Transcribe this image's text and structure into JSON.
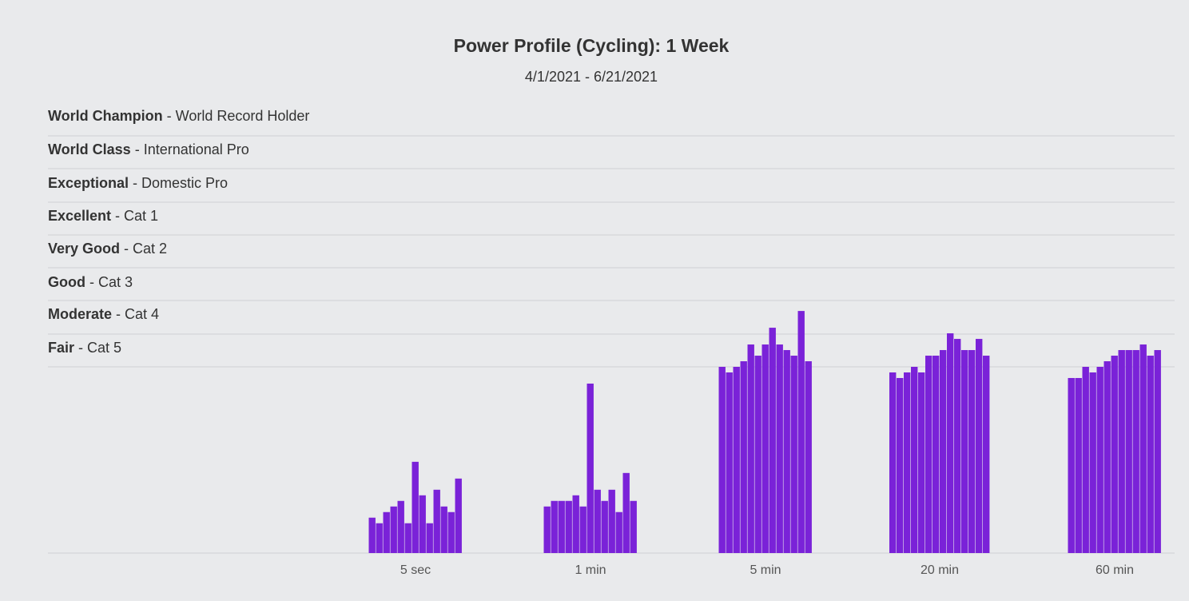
{
  "chart_data": {
    "type": "bar",
    "title": "Power Profile (Cycling): 1 Week",
    "subtitle": "4/1/2021 - 6/21/2021",
    "bar_color": "#7a22d8",
    "grid_color": "#cfd0d3",
    "levels": [
      {
        "name": "World Champion",
        "desc": "World Record Holder"
      },
      {
        "name": "World Class",
        "desc": "International Pro"
      },
      {
        "name": "Exceptional",
        "desc": "Domestic Pro"
      },
      {
        "name": "Excellent",
        "desc": "Cat 1"
      },
      {
        "name": "Very Good",
        "desc": "Cat 2"
      },
      {
        "name": "Good",
        "desc": "Cat 3"
      },
      {
        "name": "Moderate",
        "desc": "Cat 4"
      },
      {
        "name": "Fair",
        "desc": "Cat 5"
      }
    ],
    "categories": [
      "5 sec",
      "1 min",
      "5 min",
      "20 min",
      "60 min"
    ],
    "values": [
      [
        0.19,
        0.16,
        0.22,
        0.25,
        0.28,
        0.16,
        0.49,
        0.31,
        0.16,
        0.34,
        0.25,
        0.22,
        0.4
      ],
      [
        0.25,
        0.28,
        0.28,
        0.28,
        0.31,
        0.25,
        0.91,
        0.34,
        0.28,
        0.34,
        0.22,
        0.43,
        0.28
      ],
      [
        1.0,
        0.97,
        1.0,
        1.03,
        1.12,
        1.06,
        1.12,
        1.21,
        1.12,
        1.09,
        1.06,
        1.3,
        1.03
      ],
      [
        0.97,
        0.94,
        0.97,
        1.0,
        0.97,
        1.06,
        1.06,
        1.09,
        1.18,
        1.15,
        1.09,
        1.09,
        1.15,
        1.06
      ],
      [
        0.94,
        0.94,
        1.0,
        0.97,
        1.0,
        1.03,
        1.06,
        1.09,
        1.09,
        1.09,
        1.12,
        1.06,
        1.09
      ]
    ],
    "ylim": [
      0,
      1.75
    ],
    "grid": true
  }
}
